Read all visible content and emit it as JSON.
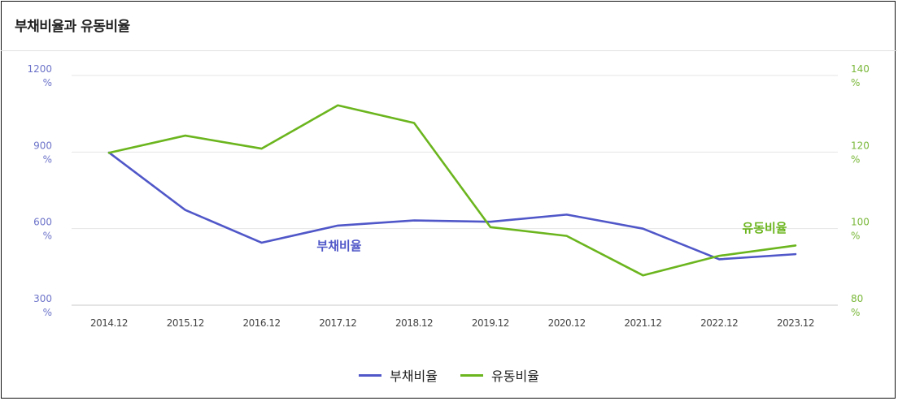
{
  "chart_data": {
    "type": "line",
    "title": "부채비율과 유동비율",
    "categories": [
      "2014.12",
      "2015.12",
      "2016.12",
      "2017.12",
      "2018.12",
      "2019.12",
      "2020.12",
      "2021.12",
      "2022.12",
      "2023.12"
    ],
    "left_axis": {
      "ylim": [
        300,
        1200
      ],
      "ticks": [
        "1200",
        "900",
        "600",
        "300"
      ],
      "unit": "%"
    },
    "right_axis": {
      "ylim": [
        80,
        140
      ],
      "ticks": [
        "140",
        "120",
        "100",
        "80"
      ],
      "unit": "%"
    },
    "series": [
      {
        "name": "부채비율",
        "axis": "left",
        "color": "#5057c8",
        "values": [
          898,
          673,
          545,
          612,
          632,
          627,
          655,
          600,
          480,
          500
        ]
      },
      {
        "name": "유동비율",
        "axis": "right",
        "color": "#6bb51e",
        "values": [
          119.8,
          124.3,
          120.9,
          132.2,
          127.6,
          100.4,
          98.1,
          87.8,
          92.9,
          95.6
        ]
      }
    ],
    "annotations": [
      {
        "text": "부채비율",
        "series": "부채비율"
      },
      {
        "text": "유동비율",
        "series": "유동비율"
      }
    ],
    "grid": true,
    "legend": "bottom-center"
  }
}
